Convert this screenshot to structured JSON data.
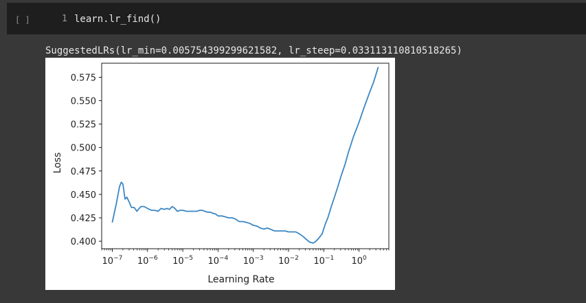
{
  "cell": {
    "run_button": "[ ]",
    "line_number": "1",
    "code": "learn.lr_find()",
    "output_text": "SuggestedLRs(lr_min=0.005754399299621582, lr_steep=0.033113110810518265)"
  },
  "chart_data": {
    "type": "line",
    "title": "",
    "xlabel": "Learning Rate",
    "ylabel": "Loss",
    "x_scale": "log",
    "xlim": [
      5e-08,
      7
    ],
    "ylim": [
      0.392,
      0.59
    ],
    "x_ticks": [
      {
        "value": 1e-07,
        "base": "10",
        "exp": "−7"
      },
      {
        "value": 1e-06,
        "base": "10",
        "exp": "−6"
      },
      {
        "value": 1e-05,
        "base": "10",
        "exp": "−5"
      },
      {
        "value": 0.0001,
        "base": "10",
        "exp": "−4"
      },
      {
        "value": 0.001,
        "base": "10",
        "exp": "−3"
      },
      {
        "value": 0.01,
        "base": "10",
        "exp": "−2"
      },
      {
        "value": 0.1,
        "base": "10",
        "exp": "−1"
      },
      {
        "value": 1,
        "base": "10",
        "exp": "0"
      }
    ],
    "y_ticks": [
      "0.400",
      "0.425",
      "0.450",
      "0.475",
      "0.500",
      "0.525",
      "0.550",
      "0.575"
    ],
    "line_color": "#3a86c4",
    "grid": false,
    "series": [
      {
        "x": [
          1e-07,
          1.3e-07,
          1.6e-07,
          1.8e-07,
          2e-07,
          2.3e-07,
          2.6e-07,
          3e-07,
          3.5e-07,
          4.2e-07,
          5e-07,
          5.5e-07,
          6.5e-07,
          8e-07,
          1e-06,
          1.3e-06,
          1.6e-06,
          2e-06,
          2.4e-06,
          3e-06,
          3.5e-06,
          4.2e-06,
          5e-06,
          6e-06,
          7e-06,
          8.5e-06,
          1e-05,
          1.3e-05,
          1.6e-05,
          2e-05,
          2.5e-05,
          3e-05,
          3.6e-05,
          4.2e-05,
          5e-05,
          6e-05,
          7e-05,
          8.5e-05,
          0.0001,
          0.00013,
          0.00016,
          0.0002,
          0.00025,
          0.0003,
          0.0004,
          0.0005,
          0.00065,
          0.0008,
          0.001,
          0.0013,
          0.0016,
          0.002,
          0.0025,
          0.003,
          0.004,
          0.005,
          0.0065,
          0.008,
          0.01,
          0.013,
          0.016,
          0.02,
          0.026,
          0.032,
          0.04,
          0.05,
          0.06,
          0.075,
          0.09,
          0.11,
          0.13,
          0.16,
          0.2,
          0.25,
          0.3,
          0.4,
          0.5,
          0.7,
          1.0,
          1.4,
          2.0,
          2.6,
          3.5
        ],
        "y": [
          0.42,
          0.44,
          0.458,
          0.463,
          0.461,
          0.445,
          0.447,
          0.442,
          0.436,
          0.436,
          0.432,
          0.434,
          0.437,
          0.437,
          0.435,
          0.433,
          0.433,
          0.432,
          0.435,
          0.434,
          0.435,
          0.434,
          0.437,
          0.435,
          0.432,
          0.433,
          0.433,
          0.432,
          0.432,
          0.432,
          0.432,
          0.433,
          0.433,
          0.432,
          0.431,
          0.431,
          0.43,
          0.429,
          0.427,
          0.427,
          0.426,
          0.425,
          0.425,
          0.424,
          0.421,
          0.421,
          0.42,
          0.419,
          0.417,
          0.416,
          0.414,
          0.413,
          0.414,
          0.413,
          0.411,
          0.411,
          0.411,
          0.411,
          0.41,
          0.41,
          0.41,
          0.408,
          0.405,
          0.402,
          0.399,
          0.398,
          0.4,
          0.404,
          0.408,
          0.418,
          0.425,
          0.436,
          0.447,
          0.458,
          0.468,
          0.482,
          0.495,
          0.512,
          0.527,
          0.543,
          0.559,
          0.57,
          0.586
        ]
      }
    ]
  }
}
